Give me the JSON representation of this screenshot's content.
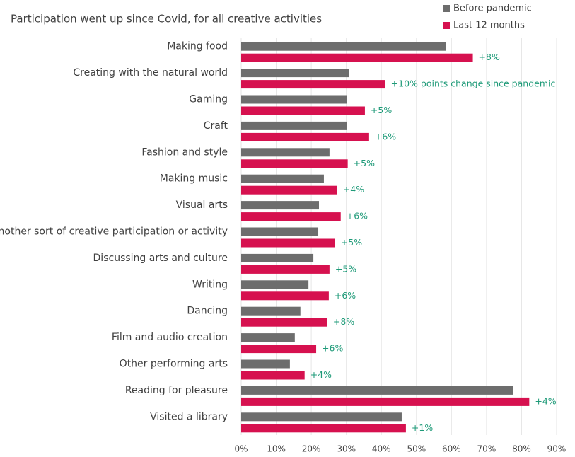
{
  "chart_data": {
    "type": "barh",
    "title": "Participation went up since Covid, for all creative activities",
    "categories": [
      "Making food",
      "Creating with the natural world",
      "Gaming",
      "Craft",
      "Fashion and style",
      "Making music",
      "Visual arts",
      "Another sort of creative participation or activity",
      "Discussing arts and culture",
      "Writing",
      "Dancing",
      "Film and audio creation",
      "Other performing arts",
      "Reading for pleasure",
      "Visited a library"
    ],
    "series": [
      {
        "name": "Before pandemic",
        "color": "#6d6d6d",
        "values": [
          58.5,
          30.8,
          30.2,
          30.2,
          25.2,
          23.6,
          22.2,
          22,
          20.6,
          19.2,
          16.9,
          15.3,
          13.9,
          77.6,
          45.8
        ]
      },
      {
        "name": "Last 12 months",
        "color": "#d6114f",
        "values": [
          66.1,
          41.1,
          35.3,
          36.5,
          30.4,
          27.4,
          28.4,
          26.8,
          25.2,
          25,
          24.6,
          21.4,
          18.1,
          82.2,
          47
        ]
      }
    ],
    "annotations": [
      "+8%",
      "+10% points change since pandemic",
      "+5%",
      "+6%",
      "+5%",
      "+4%",
      "+6%",
      "+5%",
      "+5%",
      "+6%",
      "+8%",
      "+6%",
      "+4%",
      "+4%",
      "+1%"
    ],
    "annotation_color": "#1e9a78",
    "xlim": [
      0,
      90
    ],
    "xticks": [
      {
        "value": 0,
        "label": "0%"
      },
      {
        "value": 10,
        "label": "10%"
      },
      {
        "value": 20,
        "label": "20%"
      },
      {
        "value": 30,
        "label": "30%"
      },
      {
        "value": 40,
        "label": "40%"
      },
      {
        "value": 50,
        "label": "50%"
      },
      {
        "value": 60,
        "label": "60%"
      },
      {
        "value": 70,
        "label": "70%"
      },
      {
        "value": 80,
        "label": "80%"
      },
      {
        "value": 90,
        "label": "90%"
      }
    ],
    "grid": true,
    "legend": "top-right"
  }
}
